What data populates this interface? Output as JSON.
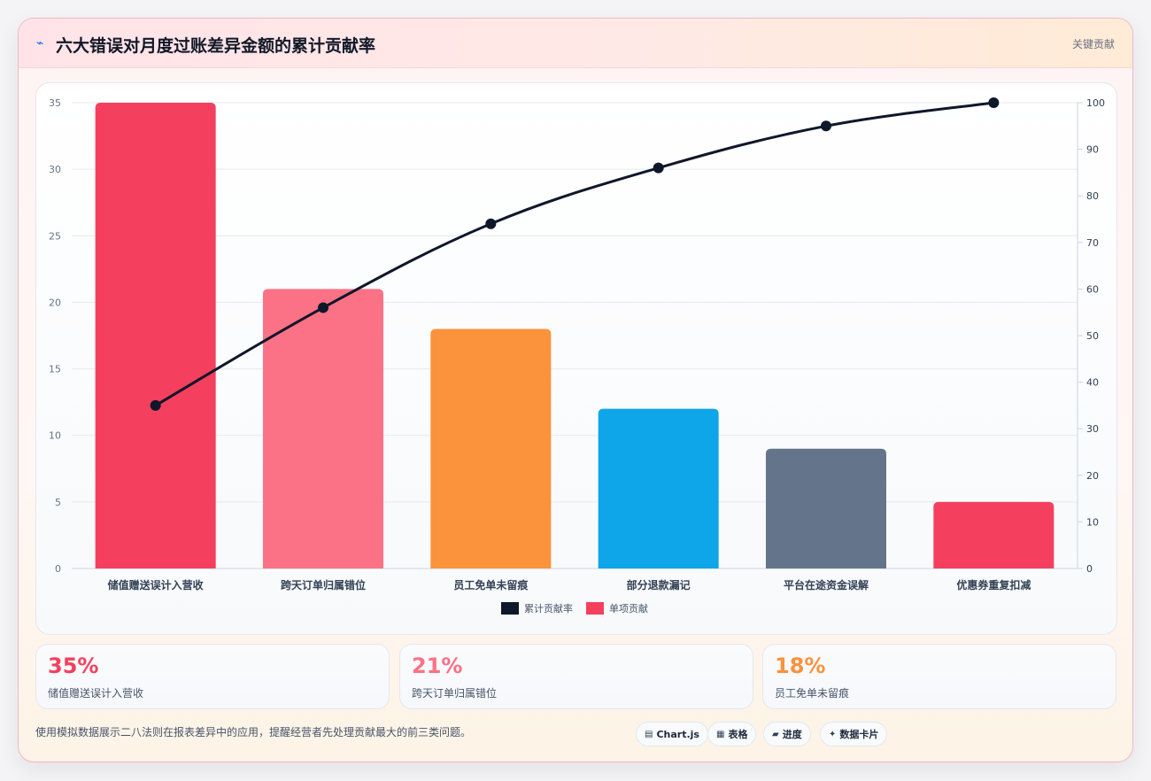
{
  "header": {
    "icon": "lightning-icon",
    "title": "六大错误对月度过账差异金额的累计贡献率",
    "tag": "关键贡献"
  },
  "chart_data": {
    "type": "bar",
    "categories": [
      "储值赠送误计入营收",
      "跨天订单归属错位",
      "员工免单未留痕",
      "部分退款漏记",
      "平台在途资金误解",
      "优惠券重复扣减"
    ],
    "series": [
      {
        "name": "单项贡献",
        "type": "bar",
        "axis": "left",
        "values": [
          35,
          21,
          18,
          12,
          9,
          5
        ],
        "colors": [
          "#f43f5e",
          "#fb7185",
          "#fb923c",
          "#0ea5e9",
          "#64748b",
          "#f43f5e"
        ]
      },
      {
        "name": "累计贡献率",
        "type": "line",
        "axis": "right",
        "values": [
          35,
          56,
          74,
          86,
          95,
          100
        ],
        "color": "#0f172a"
      }
    ],
    "y_left": {
      "ticks": [
        0,
        5,
        10,
        15,
        20,
        25,
        30,
        35
      ],
      "range": [
        0,
        35
      ]
    },
    "y_right": {
      "ticks": [
        0,
        10,
        20,
        30,
        40,
        50,
        60,
        70,
        80,
        90,
        100
      ],
      "range": [
        0,
        100
      ]
    },
    "legend": [
      "累计贡献率",
      "单项贡献"
    ],
    "legend_position": "bottom",
    "grid": true
  },
  "stats": [
    {
      "value": "35%",
      "label": "储值赠送误计入营收",
      "color": "#f43f5e"
    },
    {
      "value": "21%",
      "label": "跨天订单归属错位",
      "color": "#fb7185"
    },
    {
      "value": "18%",
      "label": "员工免单未留痕",
      "color": "#fb923c"
    }
  ],
  "footer": {
    "note": "使用模拟数据展示二八法则在报表差异中的应用，提醒经营者先处理贡献最大的前三类问题。",
    "pills": [
      {
        "icon": "chart-icon",
        "glyph": "▤",
        "label": "Chart.js"
      },
      {
        "icon": "table-icon",
        "glyph": "▦",
        "label": "表格"
      },
      {
        "icon": "progress-icon",
        "glyph": "▰",
        "label": "进度"
      },
      {
        "icon": "card-icon",
        "glyph": "✦",
        "label": "数据卡片"
      }
    ]
  }
}
